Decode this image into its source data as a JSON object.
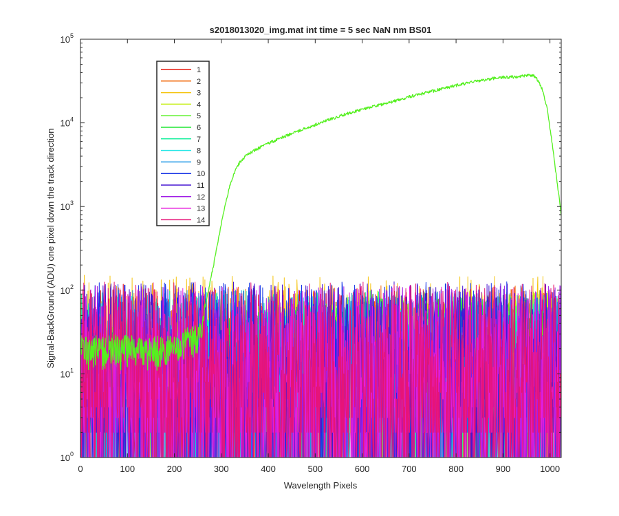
{
  "chart_data": {
    "type": "line",
    "title": "s2018013020_img.mat int time = 5 sec  NaN nm BS01",
    "xlabel": "Wavelength Pixels",
    "ylabel": "Signal-BackGround (ADU) one pixel down the track direction",
    "xlim": [
      0,
      1024
    ],
    "ylim": [
      1,
      100000
    ],
    "yscale": "log",
    "grid": false,
    "legend_location": "upper-left",
    "x_ticks": [
      "0",
      "100",
      "200",
      "300",
      "400",
      "500",
      "600",
      "700",
      "800",
      "900",
      "1000"
    ],
    "y_tick_exponents": [
      "0",
      "1",
      "2",
      "3",
      "4",
      "5"
    ],
    "y_tick_base": "10",
    "series": [
      {
        "name": "1",
        "color": "#e6190f",
        "kind": "noise",
        "center": 8
      },
      {
        "name": "2",
        "color": "#f26b0d",
        "kind": "noise",
        "center": 9
      },
      {
        "name": "3",
        "color": "#f5c410",
        "kind": "noise",
        "center": 12
      },
      {
        "name": "4",
        "color": "#c4ee12",
        "kind": "noise_rising",
        "center_start": 22,
        "center_end": 45
      },
      {
        "name": "5",
        "color": "#55f020",
        "kind": "signal",
        "points": [
          [
            0,
            20
          ],
          [
            200,
            20
          ],
          [
            255,
            30
          ],
          [
            262,
            48
          ],
          [
            270,
            85
          ],
          [
            280,
            160
          ],
          [
            290,
            310
          ],
          [
            300,
            620
          ],
          [
            310,
            1150
          ],
          [
            320,
            1950
          ],
          [
            330,
            2750
          ],
          [
            340,
            3400
          ],
          [
            350,
            3950
          ],
          [
            360,
            4350
          ],
          [
            380,
            5000
          ],
          [
            400,
            5700
          ],
          [
            420,
            6350
          ],
          [
            450,
            7500
          ],
          [
            500,
            9500
          ],
          [
            550,
            12000
          ],
          [
            600,
            14500
          ],
          [
            650,
            17000
          ],
          [
            700,
            20500
          ],
          [
            750,
            24000
          ],
          [
            800,
            28000
          ],
          [
            850,
            32000
          ],
          [
            880,
            34000
          ],
          [
            900,
            35000
          ],
          [
            930,
            35500
          ],
          [
            955,
            37000
          ],
          [
            965,
            36500
          ],
          [
            975,
            32000
          ],
          [
            985,
            24000
          ],
          [
            995,
            14000
          ],
          [
            1005,
            5500
          ],
          [
            1015,
            2000
          ],
          [
            1024,
            800
          ]
        ]
      },
      {
        "name": "6",
        "color": "#1ee632",
        "kind": "noise_rising",
        "center_start": 18,
        "center_end": 38
      },
      {
        "name": "7",
        "color": "#1ef0a0",
        "kind": "noise",
        "center": 8
      },
      {
        "name": "8",
        "color": "#1ee6e6",
        "kind": "noise",
        "center": 7
      },
      {
        "name": "9",
        "color": "#1e96e6",
        "kind": "noise",
        "center": 8
      },
      {
        "name": "10",
        "color": "#1432e6",
        "kind": "noise",
        "center": 10
      },
      {
        "name": "11",
        "color": "#4616d2",
        "kind": "noise",
        "center": 10
      },
      {
        "name": "12",
        "color": "#a01ee6",
        "kind": "noise",
        "center": 9
      },
      {
        "name": "13",
        "color": "#e61edc",
        "kind": "noise",
        "center": 9
      },
      {
        "name": "14",
        "color": "#e61478",
        "kind": "noise",
        "center": 10
      }
    ]
  }
}
